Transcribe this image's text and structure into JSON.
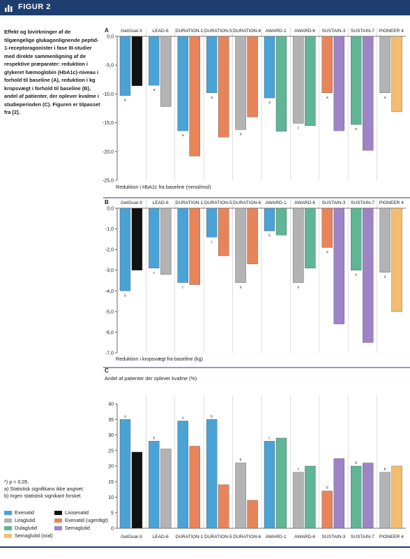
{
  "figure": {
    "title": "FIGUR 2",
    "icon": "bar-chart-icon"
  },
  "caption": "Effekt og bivirkninger af de tilgængelige glukagonlignende peptid-1-receptoragonister i fase III-studier med direkte sammenligning af de respektive præparater: reduktion i glykeret hæmoglobin (HbA1c)-niveau i forhold til baseline (A), reduktion i kg kropsvægt i forhold til baseline (B), andel af patienter, der oplever kvalme i studieperioden (C). Figuren er tilpasset fra [2].",
  "footnotes": [
    "*) p < 0,05.",
    "a) Statistisk signifikans ikke angivet.",
    "b) Ingen statistisk signikant forskel."
  ],
  "legend": [
    {
      "name": "Exenatid",
      "color": "#4aa3d4"
    },
    {
      "name": "Lixisenatid",
      "color": "#111111"
    },
    {
      "name": "Liraglutid",
      "color": "#b3b3b3"
    },
    {
      "name": "Exenatid (ugentligt)",
      "color": "#e8845a"
    },
    {
      "name": "Dulaglutid",
      "color": "#5fb596"
    },
    {
      "name": "Semaglutid",
      "color": "#9d84c6"
    },
    {
      "name": "Semaglutid (oral)",
      "color": "#f2bd6e"
    }
  ],
  "chart_data": [
    {
      "panel": "A",
      "type": "bar",
      "xlabel": "Reduktion i HbA1c fra baseline (mmol/mol)",
      "ylim": [
        -25,
        0
      ],
      "yticks": [
        "0,0",
        "-5,0",
        "-10,0",
        "-15,0",
        "-20,0",
        "-25,0"
      ],
      "categories": [
        "GetGoal-X",
        "LEAD-6",
        "DURATION-1",
        "DURATION-5",
        "DURATION-6",
        "AWARD-1",
        "AWARD-6",
        "SUSTAIN-3",
        "SUSTAIN-7",
        "PIONEER 4"
      ],
      "groups": [
        {
          "bars": [
            {
              "drug": "Exenatid",
              "value": -10.3
            },
            {
              "drug": "Lixisenatid",
              "value": -8.6
            }
          ],
          "note": "b"
        },
        {
          "bars": [
            {
              "drug": "Exenatid",
              "value": -8.5
            },
            {
              "drug": "Liraglutid",
              "value": -12.2
            }
          ],
          "note": "a"
        },
        {
          "bars": [
            {
              "drug": "Exenatid",
              "value": -16.4
            },
            {
              "drug": "Exenatid (ugentligt)",
              "value": -20.8
            }
          ],
          "note": "a"
        },
        {
          "bars": [
            {
              "drug": "Exenatid",
              "value": -9.8
            },
            {
              "drug": "Exenatid (ugentligt)",
              "value": -17.5
            }
          ],
          "note": "a"
        },
        {
          "bars": [
            {
              "drug": "Liraglutid",
              "value": -16.2
            },
            {
              "drug": "Exenatid (ugentligt)",
              "value": -14.0
            }
          ],
          "note": "a"
        },
        {
          "bars": [
            {
              "drug": "Exenatid",
              "value": -10.7
            },
            {
              "drug": "Dulaglutid",
              "value": -16.5
            }
          ],
          "note": "a"
        },
        {
          "bars": [
            {
              "drug": "Liraglutid",
              "value": -15.1
            },
            {
              "drug": "Dulaglutid",
              "value": -15.5
            }
          ],
          "note": "c"
        },
        {
          "bars": [
            {
              "drug": "Exenatid (ugentligt)",
              "value": -9.8
            },
            {
              "drug": "Semaglutid",
              "value": -16.4
            }
          ],
          "note": "a"
        },
        {
          "bars": [
            {
              "drug": "Dulaglutid",
              "value": -15.3
            },
            {
              "drug": "Semaglutid",
              "value": -19.8
            }
          ],
          "note": "a"
        },
        {
          "bars": [
            {
              "drug": "Liraglutid",
              "value": -9.8
            },
            {
              "drug": "Semaglutid (oral)",
              "value": -13.1
            }
          ],
          "note": "a"
        }
      ]
    },
    {
      "panel": "B",
      "type": "bar",
      "xlabel": "Reduktion i kropsvægt fra baseline (kg)",
      "ylim": [
        -7,
        0
      ],
      "yticks": [
        "0,0",
        "-1,0",
        "-2,0",
        "-3,0",
        "-4,0",
        "-5,0",
        "-6,0",
        "-7,0"
      ],
      "categories": [
        "GetGoal-X",
        "LEAD-6",
        "DURATION-1",
        "DURATION-5",
        "DURATION-6",
        "AWARD-1",
        "AWARD-6",
        "SUSTAIN-3",
        "SUSTAIN-7",
        "PIONEER 4"
      ],
      "groups": [
        {
          "bars": [
            {
              "drug": "Exenatid",
              "value": -4.0
            },
            {
              "drug": "Lixisenatid",
              "value": -3.0
            }
          ],
          "note": "b"
        },
        {
          "bars": [
            {
              "drug": "Exenatid",
              "value": -2.9
            },
            {
              "drug": "Liraglutid",
              "value": -3.2
            }
          ],
          "note": "c"
        },
        {
          "bars": [
            {
              "drug": "Exenatid",
              "value": -3.6
            },
            {
              "drug": "Exenatid (ugentligt)",
              "value": -3.7
            }
          ],
          "note": "c"
        },
        {
          "bars": [
            {
              "drug": "Exenatid",
              "value": -1.4
            },
            {
              "drug": "Exenatid (ugentligt)",
              "value": -2.3
            }
          ],
          "note": "c"
        },
        {
          "bars": [
            {
              "drug": "Liraglutid",
              "value": -3.6
            },
            {
              "drug": "Exenatid (ugentligt)",
              "value": -2.7
            }
          ],
          "note": "a"
        },
        {
          "bars": [
            {
              "drug": "Exenatid",
              "value": -1.1
            },
            {
              "drug": "Dulaglutid",
              "value": -1.3
            }
          ],
          "note": "b"
        },
        {
          "bars": [
            {
              "drug": "Liraglutid",
              "value": -3.6
            },
            {
              "drug": "Dulaglutid",
              "value": -2.9
            }
          ],
          "note": "a"
        },
        {
          "bars": [
            {
              "drug": "Exenatid (ugentligt)",
              "value": -1.9
            },
            {
              "drug": "Semaglutid",
              "value": -5.6
            }
          ],
          "note": "a"
        },
        {
          "bars": [
            {
              "drug": "Dulaglutid",
              "value": -3.0
            },
            {
              "drug": "Semaglutid",
              "value": -6.5
            }
          ],
          "note": "a"
        },
        {
          "bars": [
            {
              "drug": "Liraglutid",
              "value": -3.1
            },
            {
              "drug": "Semaglutid (oral)",
              "value": -5.0
            }
          ],
          "note": "a"
        }
      ]
    },
    {
      "panel": "C",
      "type": "bar",
      "title": "Andel af patienter der oplever kvalme (%)",
      "ylim": [
        0,
        40
      ],
      "yticks": [
        "40",
        "35",
        "30",
        "25",
        "20",
        "15",
        "10",
        "5",
        "0"
      ],
      "categories": [
        "GetGoal-X",
        "LEAD-6",
        "DURATION-1",
        "DURATION-5",
        "DURATION-6",
        "AWARD-1",
        "AWARD-6",
        "SUSTAIN-3",
        "SUSTAIN-7",
        "PIONEER 4"
      ],
      "groups": [
        {
          "bars": [
            {
              "drug": "Exenatid",
              "value": 35.0
            },
            {
              "drug": "Lixisenatid",
              "value": 24.5
            }
          ],
          "note": "a"
        },
        {
          "bars": [
            {
              "drug": "Exenatid",
              "value": 28.0
            },
            {
              "drug": "Liraglutid",
              "value": 25.5
            }
          ],
          "note": "b"
        },
        {
          "bars": [
            {
              "drug": "Exenatid",
              "value": 34.5
            },
            {
              "drug": "Exenatid (ugentligt)",
              "value": 26.4
            }
          ],
          "note": "a"
        },
        {
          "bars": [
            {
              "drug": "Exenatid",
              "value": 35.0
            },
            {
              "drug": "Exenatid (ugentligt)",
              "value": 14.0
            }
          ],
          "note": "b"
        },
        {
          "bars": [
            {
              "drug": "Liraglutid",
              "value": 21.0
            },
            {
              "drug": "Exenatid (ugentligt)",
              "value": 9.0
            }
          ],
          "note": "b"
        },
        {
          "bars": [
            {
              "drug": "Exenatid",
              "value": 28.0
            },
            {
              "drug": "Dulaglutid",
              "value": 29.0
            }
          ],
          "note": "c"
        },
        {
          "bars": [
            {
              "drug": "Liraglutid",
              "value": 18.0
            },
            {
              "drug": "Dulaglutid",
              "value": 20.0
            }
          ],
          "note": "c"
        },
        {
          "bars": [
            {
              "drug": "Exenatid (ugentligt)",
              "value": 12.0
            },
            {
              "drug": "Semaglutid",
              "value": 22.4
            }
          ],
          "note": "b"
        },
        {
          "bars": [
            {
              "drug": "Dulaglutid",
              "value": 20.0
            },
            {
              "drug": "Semaglutid",
              "value": 21.0
            }
          ],
          "note": "b"
        },
        {
          "bars": [
            {
              "drug": "Liraglutid",
              "value": 18.0
            },
            {
              "drug": "Semaglutid (oral)",
              "value": 20.0
            }
          ],
          "note": "b"
        }
      ]
    }
  ]
}
